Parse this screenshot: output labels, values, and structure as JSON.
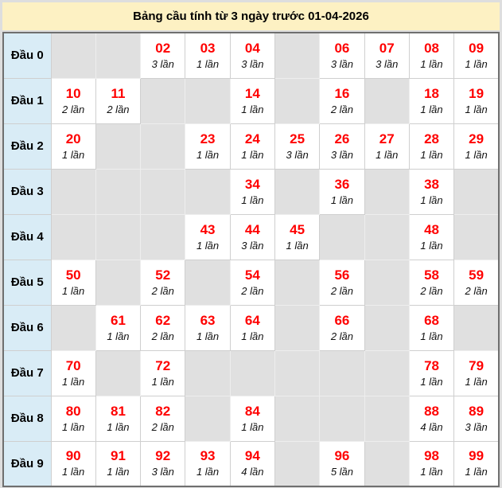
{
  "title": "Bảng cầu tính từ 3 ngày trước 01-04-2026",
  "colors": {
    "title_bg": "#fdf1c3",
    "row_header_bg": "#d9ecf6",
    "empty_cell_bg": "#e0e0e0",
    "filled_cell_bg": "#ffffff",
    "number_color": "#ff0000",
    "table_border": "#6f6f6f"
  },
  "rows": [
    {
      "label": "Đầu 0",
      "cells": [
        null,
        null,
        {
          "num": "02",
          "count": "3 lần"
        },
        {
          "num": "03",
          "count": "1 lần"
        },
        {
          "num": "04",
          "count": "3 lần"
        },
        null,
        {
          "num": "06",
          "count": "3 lần"
        },
        {
          "num": "07",
          "count": "3 lần"
        },
        {
          "num": "08",
          "count": "1 lần"
        },
        {
          "num": "09",
          "count": "1 lần"
        }
      ]
    },
    {
      "label": "Đầu 1",
      "cells": [
        {
          "num": "10",
          "count": "2 lần"
        },
        {
          "num": "11",
          "count": "2 lần"
        },
        null,
        null,
        {
          "num": "14",
          "count": "1 lần"
        },
        null,
        {
          "num": "16",
          "count": "2 lần"
        },
        null,
        {
          "num": "18",
          "count": "1 lần"
        },
        {
          "num": "19",
          "count": "1 lần"
        }
      ]
    },
    {
      "label": "Đầu 2",
      "cells": [
        {
          "num": "20",
          "count": "1 lần"
        },
        null,
        null,
        {
          "num": "23",
          "count": "1 lần"
        },
        {
          "num": "24",
          "count": "1 lần"
        },
        {
          "num": "25",
          "count": "3 lần"
        },
        {
          "num": "26",
          "count": "3 lần"
        },
        {
          "num": "27",
          "count": "1 lần"
        },
        {
          "num": "28",
          "count": "1 lần"
        },
        {
          "num": "29",
          "count": "1 lần"
        }
      ]
    },
    {
      "label": "Đầu 3",
      "cells": [
        null,
        null,
        null,
        null,
        {
          "num": "34",
          "count": "1 lần"
        },
        null,
        {
          "num": "36",
          "count": "1 lần"
        },
        null,
        {
          "num": "38",
          "count": "1 lần"
        },
        null
      ]
    },
    {
      "label": "Đầu 4",
      "cells": [
        null,
        null,
        null,
        {
          "num": "43",
          "count": "1 lần"
        },
        {
          "num": "44",
          "count": "3 lần"
        },
        {
          "num": "45",
          "count": "1 lần"
        },
        null,
        null,
        {
          "num": "48",
          "count": "1 lần"
        },
        null
      ]
    },
    {
      "label": "Đầu 5",
      "cells": [
        {
          "num": "50",
          "count": "1 lần"
        },
        null,
        {
          "num": "52",
          "count": "2 lần"
        },
        null,
        {
          "num": "54",
          "count": "2 lần"
        },
        null,
        {
          "num": "56",
          "count": "2 lần"
        },
        null,
        {
          "num": "58",
          "count": "2 lần"
        },
        {
          "num": "59",
          "count": "2 lần"
        }
      ]
    },
    {
      "label": "Đầu 6",
      "cells": [
        null,
        {
          "num": "61",
          "count": "1 lần"
        },
        {
          "num": "62",
          "count": "2 lần"
        },
        {
          "num": "63",
          "count": "1 lần"
        },
        {
          "num": "64",
          "count": "1 lần"
        },
        null,
        {
          "num": "66",
          "count": "2 lần"
        },
        null,
        {
          "num": "68",
          "count": "1 lần"
        },
        null
      ]
    },
    {
      "label": "Đầu 7",
      "cells": [
        {
          "num": "70",
          "count": "1 lần"
        },
        null,
        {
          "num": "72",
          "count": "1 lần"
        },
        null,
        null,
        null,
        null,
        null,
        {
          "num": "78",
          "count": "1 lần"
        },
        {
          "num": "79",
          "count": "1 lần"
        }
      ]
    },
    {
      "label": "Đầu 8",
      "cells": [
        {
          "num": "80",
          "count": "1 lần"
        },
        {
          "num": "81",
          "count": "1 lần"
        },
        {
          "num": "82",
          "count": "2 lần"
        },
        null,
        {
          "num": "84",
          "count": "1 lần"
        },
        null,
        null,
        null,
        {
          "num": "88",
          "count": "4 lần"
        },
        {
          "num": "89",
          "count": "3 lần"
        }
      ]
    },
    {
      "label": "Đầu 9",
      "cells": [
        {
          "num": "90",
          "count": "1 lần"
        },
        {
          "num": "91",
          "count": "1 lần"
        },
        {
          "num": "92",
          "count": "3 lần"
        },
        {
          "num": "93",
          "count": "1 lần"
        },
        {
          "num": "94",
          "count": "4 lần"
        },
        null,
        {
          "num": "96",
          "count": "5 lần"
        },
        null,
        {
          "num": "98",
          "count": "1 lần"
        },
        {
          "num": "99",
          "count": "1 lần"
        }
      ]
    }
  ]
}
